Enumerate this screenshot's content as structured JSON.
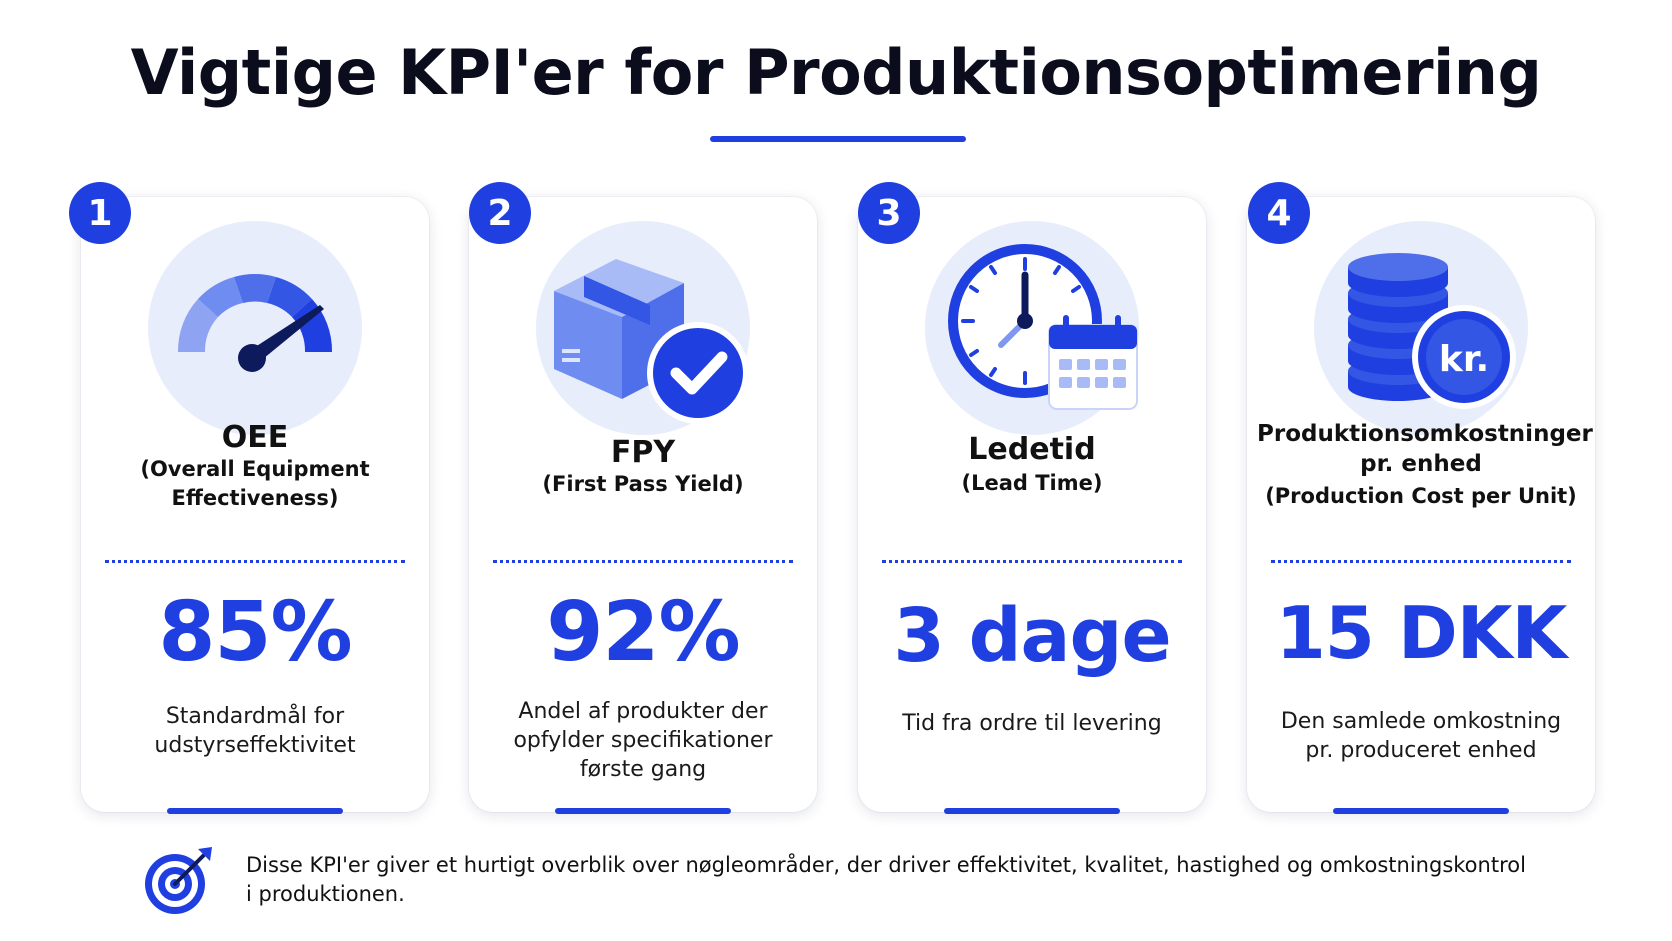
{
  "title": "Vigtige KPI'er for Produktionsoptimering",
  "colors": {
    "accent": "#1f3fe0",
    "bubble": "#e8edfb",
    "light_blue": "#7f97f0"
  },
  "cards": [
    {
      "number": "1",
      "icon": "gauge-icon",
      "name": "OEE",
      "sub_lines": [
        "(Overall Equipment",
        "Effectiveness)"
      ],
      "value": "85%",
      "desc_lines": [
        "Standardmål for",
        "udstyrseffektivitet"
      ]
    },
    {
      "number": "2",
      "icon": "box-check-icon",
      "name": "FPY",
      "sub_lines": [
        "(First Pass Yield)"
      ],
      "value": "92%",
      "desc_lines": [
        "Andel af produkter der",
        "opfylder specifikationer",
        "første gang"
      ]
    },
    {
      "number": "3",
      "icon": "clock-calendar-icon",
      "name": "Ledetid",
      "sub_lines": [
        "(Lead Time)"
      ],
      "value": "3 dage",
      "desc_lines": [
        "Tid fra ordre til levering"
      ]
    },
    {
      "number": "4",
      "icon": "coins-kr-icon",
      "name_lines": [
        "Produktionsomkostninger",
        "pr. enhed"
      ],
      "sub_lines": [
        "(Production Cost per Unit)"
      ],
      "coin_label": "kr.",
      "value": "15 DKK",
      "desc_lines": [
        "Den samlede omkostning",
        "pr. produceret enhed"
      ]
    }
  ],
  "footer": {
    "icon": "target-icon",
    "lines": [
      "Disse KPI'er giver et hurtigt overblik over nøgleområder, der driver effektivitet, kvalitet, hastighed og omkostningskontrol",
      "i produktionen."
    ]
  }
}
